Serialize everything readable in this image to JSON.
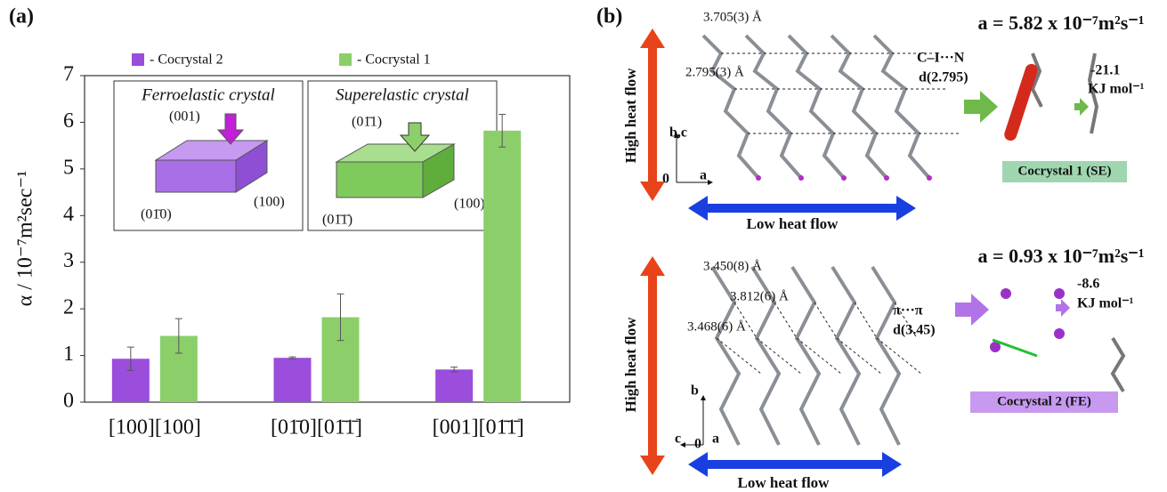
{
  "chart_data": {
    "type": "bar",
    "panel_label": "(a)",
    "y_label": "α / 10⁻⁷m²sec⁻¹",
    "categories": [
      "[100][100]",
      "[01̄0][01̄1̄]",
      "[001][01̄1̄]"
    ],
    "series": [
      {
        "name": "- Cocrystal 2",
        "color": "#9b4ddb",
        "values": [
          0.93,
          0.95,
          0.7
        ],
        "errors": [
          0.25,
          0.02,
          0.05
        ]
      },
      {
        "name": "- Cocrystal 1",
        "color": "#8ccf6a",
        "values": [
          1.42,
          1.82,
          5.82
        ],
        "errors": [
          0.37,
          0.5,
          0.35
        ]
      }
    ],
    "ylim": [
      0,
      7
    ],
    "yticks": [
      0,
      1,
      2,
      3,
      4,
      5,
      6,
      7
    ],
    "insets": [
      {
        "title": "Ferroelastic crystal",
        "top_face": "(001)",
        "front_face": "(01̄0)",
        "side_face": "(100)"
      },
      {
        "title": "Superelastic crystal",
        "top_face": "(01̄1)",
        "front_face": "(01̄1̄)",
        "side_face": "(100)"
      }
    ]
  },
  "panel_b": {
    "panel_label": "(b)",
    "top": {
      "distance_1": "3.705(3) Å",
      "distance_2": "2.795(3) Å",
      "interaction": "C–I···N",
      "interaction_d": "d(2.795)",
      "axis_bc": "b,c",
      "axis_origin": "0",
      "axis_a": "a",
      "vertical_arrow": "High heat flow",
      "horizontal_arrow": "Low heat flow",
      "diffusivity": "a = 5.82 x 10⁻⁷m²s⁻¹",
      "energy": "-21.1",
      "energy_unit": "KJ mol⁻¹",
      "caption": "Cocrystal 1 (SE)"
    },
    "bottom": {
      "distance_1": "3.450(8) Å",
      "distance_2": "3.812(6) Å",
      "distance_3": "3.468(6) Å",
      "interaction": "π···π",
      "interaction_d": "d(3.45)",
      "axis_b": "b",
      "axis_c": "c",
      "axis_origin": "0",
      "axis_a": "a",
      "vertical_arrow": "High heat flow",
      "horizontal_arrow": "Low heat flow",
      "diffusivity": "a = 0.93 x 10⁻⁷m²s⁻¹",
      "energy": "-8.6",
      "energy_unit": "KJ mol⁻¹",
      "caption": "Cocrystal 2 (FE)"
    }
  }
}
